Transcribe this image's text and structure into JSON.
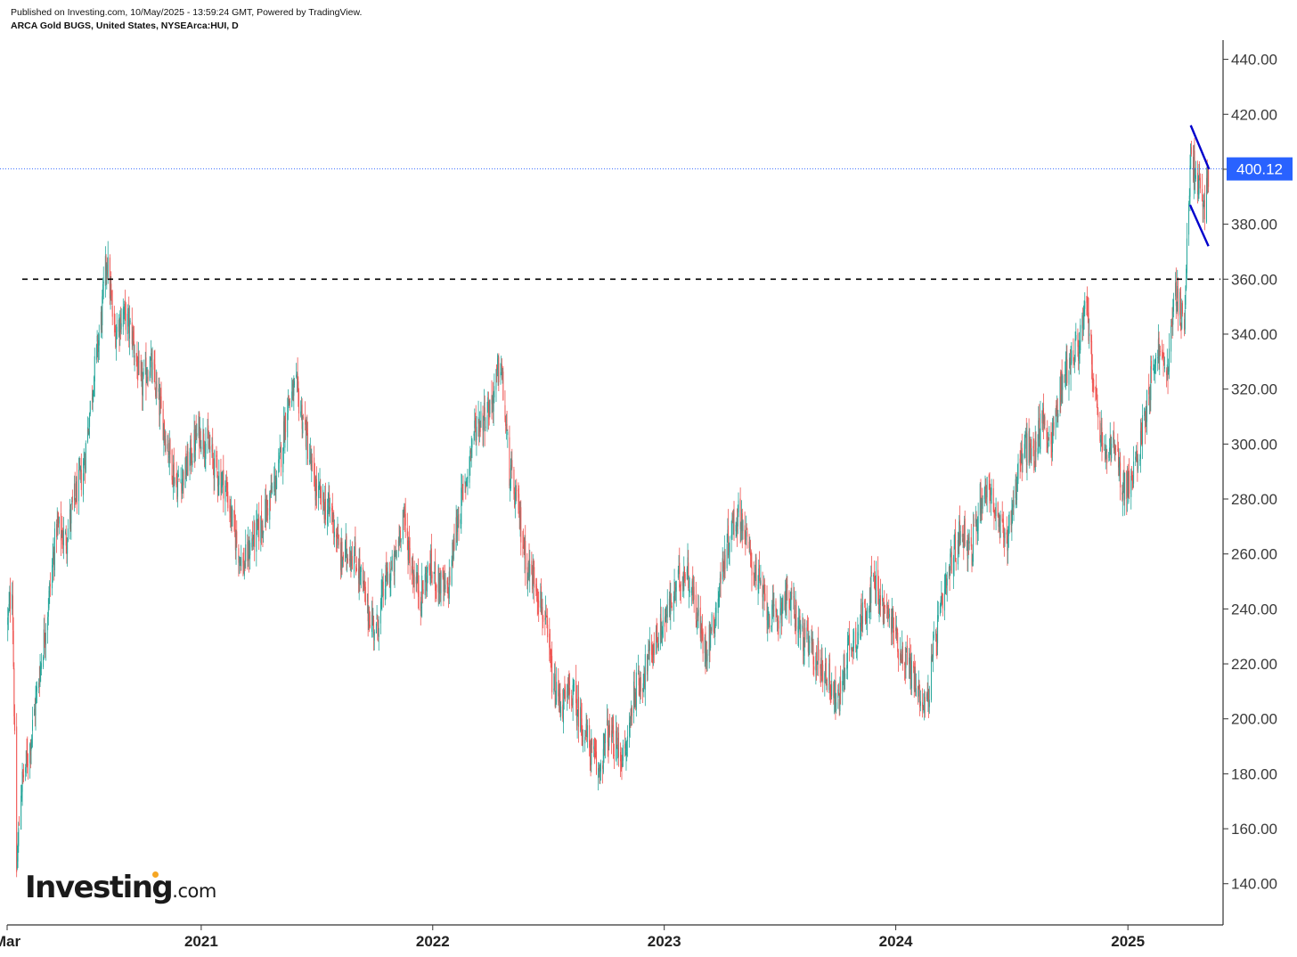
{
  "header": {
    "published": "Published on Investing.com, 10/May/2025 - 13:59:24 GMT, Powered by TradingView.",
    "instrument": "ARCA Gold BUGS, United States, NYSEArca:HUI, D"
  },
  "logo": {
    "word": "Investing",
    "suffix": ".com",
    "accent_color": "#f5a623"
  },
  "colors": {
    "up": "#26a69a",
    "down": "#ef5350",
    "price_line": "#2962ff",
    "pattern_lines": "#0000cc",
    "axis": "#333333"
  },
  "chart_data": {
    "type": "candlestick",
    "title": "",
    "xlabel": "",
    "ylabel": "",
    "ylim": [
      125,
      447
    ],
    "xlim": [
      "2020-03-01",
      "2025-05-31"
    ],
    "y_ticks": [
      "140.00",
      "160.00",
      "180.00",
      "200.00",
      "220.00",
      "240.00",
      "260.00",
      "280.00",
      "300.00",
      "320.00",
      "340.00",
      "360.00",
      "380.00",
      "400.00",
      "420.00",
      "440.00"
    ],
    "x_ticks": [
      {
        "label": "Mar",
        "date": "2020-03-01"
      },
      {
        "label": "2021",
        "date": "2021-01-01"
      },
      {
        "label": "2022",
        "date": "2022-01-01"
      },
      {
        "label": "2023",
        "date": "2023-01-01"
      },
      {
        "label": "2024",
        "date": "2024-01-01"
      },
      {
        "label": "2025",
        "date": "2025-01-01"
      }
    ],
    "last_price": {
      "value": 400.12,
      "label": "400.12"
    },
    "horizontal_line": {
      "value": 360,
      "style": "dashed"
    },
    "trend_lines": [
      {
        "from": {
          "date": "2025-04-10",
          "value": 416
        },
        "to": {
          "date": "2025-05-09",
          "value": 400
        }
      },
      {
        "from": {
          "date": "2025-04-09",
          "value": 387
        },
        "to": {
          "date": "2025-05-08",
          "value": 372
        }
      }
    ],
    "series": [
      {
        "points": [
          [
            "2020-03-02",
            235
          ],
          [
            "2020-03-09",
            250
          ],
          [
            "2020-03-16",
            145
          ],
          [
            "2020-03-23",
            175
          ],
          [
            "2020-04-06",
            190
          ],
          [
            "2020-04-20",
            215
          ],
          [
            "2020-05-04",
            240
          ],
          [
            "2020-05-18",
            270
          ],
          [
            "2020-06-01",
            265
          ],
          [
            "2020-06-15",
            280
          ],
          [
            "2020-06-29",
            290
          ],
          [
            "2020-07-13",
            320
          ],
          [
            "2020-07-27",
            345
          ],
          [
            "2020-08-05",
            368
          ],
          [
            "2020-08-17",
            340
          ],
          [
            "2020-08-31",
            348
          ],
          [
            "2020-09-14",
            340
          ],
          [
            "2020-09-28",
            320
          ],
          [
            "2020-10-12",
            330
          ],
          [
            "2020-10-26",
            315
          ],
          [
            "2020-11-09",
            300
          ],
          [
            "2020-11-23",
            285
          ],
          [
            "2020-12-07",
            290
          ],
          [
            "2020-12-28",
            305
          ],
          [
            "2021-01-11",
            300
          ],
          [
            "2021-01-25",
            290
          ],
          [
            "2021-02-08",
            285
          ],
          [
            "2021-02-22",
            268
          ],
          [
            "2021-03-08",
            255
          ],
          [
            "2021-03-22",
            265
          ],
          [
            "2021-04-05",
            270
          ],
          [
            "2021-04-19",
            280
          ],
          [
            "2021-05-03",
            290
          ],
          [
            "2021-05-17",
            315
          ],
          [
            "2021-05-31",
            320
          ],
          [
            "2021-06-14",
            305
          ],
          [
            "2021-06-28",
            285
          ],
          [
            "2021-07-12",
            278
          ],
          [
            "2021-07-26",
            275
          ],
          [
            "2021-08-09",
            258
          ],
          [
            "2021-08-23",
            262
          ],
          [
            "2021-09-06",
            255
          ],
          [
            "2021-09-20",
            240
          ],
          [
            "2021-10-04",
            232
          ],
          [
            "2021-10-18",
            250
          ],
          [
            "2021-11-01",
            255
          ],
          [
            "2021-11-15",
            275
          ],
          [
            "2021-11-29",
            255
          ],
          [
            "2021-12-13",
            245
          ],
          [
            "2021-12-27",
            255
          ],
          [
            "2022-01-10",
            250
          ],
          [
            "2022-01-24",
            245
          ],
          [
            "2022-02-07",
            270
          ],
          [
            "2022-02-21",
            285
          ],
          [
            "2022-03-07",
            305
          ],
          [
            "2022-03-21",
            310
          ],
          [
            "2022-04-04",
            315
          ],
          [
            "2022-04-18",
            330
          ],
          [
            "2022-05-02",
            290
          ],
          [
            "2022-05-16",
            275
          ],
          [
            "2022-05-30",
            255
          ],
          [
            "2022-06-13",
            250
          ],
          [
            "2022-06-27",
            235
          ],
          [
            "2022-07-11",
            210
          ],
          [
            "2022-07-25",
            205
          ],
          [
            "2022-08-08",
            210
          ],
          [
            "2022-08-22",
            200
          ],
          [
            "2022-09-05",
            190
          ],
          [
            "2022-09-19",
            180
          ],
          [
            "2022-10-03",
            195
          ],
          [
            "2022-10-17",
            190
          ],
          [
            "2022-10-31",
            185
          ],
          [
            "2022-11-14",
            210
          ],
          [
            "2022-11-28",
            215
          ],
          [
            "2022-12-12",
            225
          ],
          [
            "2023-01-09",
            240
          ],
          [
            "2023-01-23",
            250
          ],
          [
            "2023-02-06",
            255
          ],
          [
            "2023-02-20",
            240
          ],
          [
            "2023-03-06",
            225
          ],
          [
            "2023-03-20",
            235
          ],
          [
            "2023-04-03",
            255
          ],
          [
            "2023-04-17",
            270
          ],
          [
            "2023-05-01",
            275
          ],
          [
            "2023-05-15",
            260
          ],
          [
            "2023-05-29",
            250
          ],
          [
            "2023-06-12",
            240
          ],
          [
            "2023-06-26",
            235
          ],
          [
            "2023-07-10",
            245
          ],
          [
            "2023-07-24",
            240
          ],
          [
            "2023-08-07",
            230
          ],
          [
            "2023-08-21",
            225
          ],
          [
            "2023-09-04",
            220
          ],
          [
            "2023-09-18",
            215
          ],
          [
            "2023-10-02",
            205
          ],
          [
            "2023-10-16",
            225
          ],
          [
            "2023-10-30",
            230
          ],
          [
            "2023-11-13",
            240
          ],
          [
            "2023-11-27",
            250
          ],
          [
            "2023-12-11",
            240
          ],
          [
            "2023-12-27",
            235
          ],
          [
            "2024-01-08",
            225
          ],
          [
            "2024-01-22",
            220
          ],
          [
            "2024-02-05",
            210
          ],
          [
            "2024-02-19",
            205
          ],
          [
            "2024-03-04",
            230
          ],
          [
            "2024-03-18",
            245
          ],
          [
            "2024-04-01",
            260
          ],
          [
            "2024-04-15",
            270
          ],
          [
            "2024-04-29",
            260
          ],
          [
            "2024-05-13",
            280
          ],
          [
            "2024-05-27",
            285
          ],
          [
            "2024-06-10",
            270
          ],
          [
            "2024-06-24",
            265
          ],
          [
            "2024-07-08",
            285
          ],
          [
            "2024-07-22",
            300
          ],
          [
            "2024-08-05",
            295
          ],
          [
            "2024-08-19",
            310
          ],
          [
            "2024-09-02",
            300
          ],
          [
            "2024-09-16",
            320
          ],
          [
            "2024-09-30",
            330
          ],
          [
            "2024-10-14",
            335
          ],
          [
            "2024-10-28",
            350
          ],
          [
            "2024-11-11",
            315
          ],
          [
            "2024-11-25",
            295
          ],
          [
            "2024-12-09",
            300
          ],
          [
            "2024-12-23",
            285
          ],
          [
            "2025-01-06",
            285
          ],
          [
            "2025-01-20",
            300
          ],
          [
            "2025-02-03",
            320
          ],
          [
            "2025-02-17",
            335
          ],
          [
            "2025-03-03",
            325
          ],
          [
            "2025-03-17",
            355
          ],
          [
            "2025-03-31",
            345
          ],
          [
            "2025-04-10",
            405
          ],
          [
            "2025-04-21",
            395
          ],
          [
            "2025-05-01",
            385
          ],
          [
            "2025-05-09",
            400
          ]
        ]
      }
    ]
  }
}
